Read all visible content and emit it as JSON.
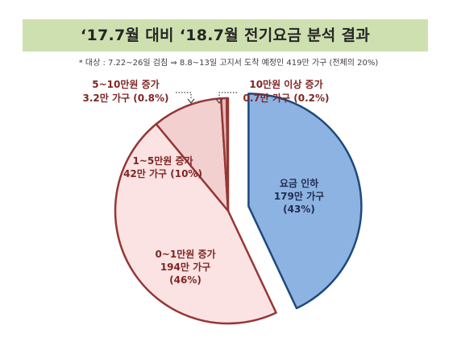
{
  "title": "‘17.7월 대비 ‘18.7월 전기요금 분석 결과",
  "note": "* 대상 : 7.22~26일 검침 ⇒ 8.8~13일 고지서 도착 예정인 419만 가구 (전체의 20%)",
  "chart_data": {
    "type": "pie",
    "title": "‘17.7월 대비 ‘18.7월 전기요금 분석 결과",
    "slices": [
      {
        "label": "요금 인하",
        "value": 43,
        "households": "179만 가구",
        "pct": "(43%)",
        "color": "#8db3e2",
        "stroke": "#1f497d",
        "exploded": true
      },
      {
        "label": "0~1만원 증가",
        "value": 46,
        "households": "194만 가구",
        "pct": "(46%)",
        "color": "#fbe3e3",
        "stroke": "#953735"
      },
      {
        "label": "1~5만원 증가",
        "value": 10,
        "households": "42만 가구",
        "pct": "(10%)",
        "color": "#f2d0d0",
        "stroke": "#953735"
      },
      {
        "label": "5~10만원 증가",
        "value": 0.8,
        "households": "3.2만 가구",
        "pct": "(0.8%)",
        "color": "#e6b9b8",
        "stroke": "#953735"
      },
      {
        "label": "10만원 이상 증가",
        "value": 0.2,
        "households": "0.7만 가구",
        "pct": "(0.2%)",
        "color": "#d99694",
        "stroke": "#953735"
      }
    ],
    "labels": {
      "s0": {
        "line1": "요금 인하",
        "line2": "179만 가구",
        "line3": "(43%)"
      },
      "s1": {
        "line1": "0~1만원 증가",
        "line2": "194만 가구",
        "line3": "(46%)"
      },
      "s2": {
        "line1": "1~5만원 증가",
        "line2": "42만 가구 (10%)"
      },
      "s3": {
        "line1": "5~10만원 증가",
        "line2": "3.2만 가구 (0.8%)"
      },
      "s4": {
        "line1": "10만원 이상 증가",
        "line2": "0.7만 가구 (0.2%)"
      }
    }
  }
}
